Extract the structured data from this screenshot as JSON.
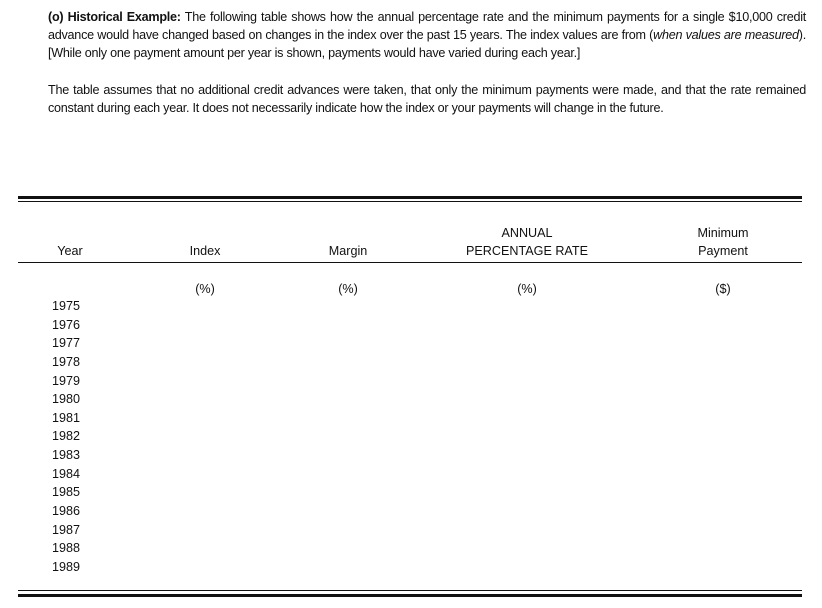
{
  "intro": {
    "lead": "(o) Historical Example:",
    "text_before_italic": " The following table shows how the annual percentage rate and the minimum payments for a single $10,000 credit advance would have changed based on changes in the index over the past 15 years. The index values are from (",
    "italic": "when values are measured",
    "text_after_italic": "). [While only one payment amount per year is shown, payments would have varied during each year.]"
  },
  "assumptions": "The table assumes that no additional credit advances were taken, that only the minimum payments were made, and that the rate remained constant during each year. It does not necessarily indicate how the index or your payments will change in the future.",
  "table": {
    "columns": [
      {
        "line1": "",
        "line2": "Year",
        "unit": ""
      },
      {
        "line1": "",
        "line2": "Index",
        "unit": "(%)"
      },
      {
        "line1": "",
        "line2": "Margin",
        "unit": "(%)"
      },
      {
        "line1": "ANNUAL",
        "line2": "PERCENTAGE RATE",
        "unit": "(%)"
      },
      {
        "line1": "Minimum",
        "line2": "Payment",
        "unit": "($)"
      }
    ],
    "years": [
      "1975",
      "1976",
      "1977",
      "1978",
      "1979",
      "1980",
      "1981",
      "1982",
      "1983",
      "1984",
      "1985",
      "1986",
      "1987",
      "1988",
      "1989"
    ]
  }
}
